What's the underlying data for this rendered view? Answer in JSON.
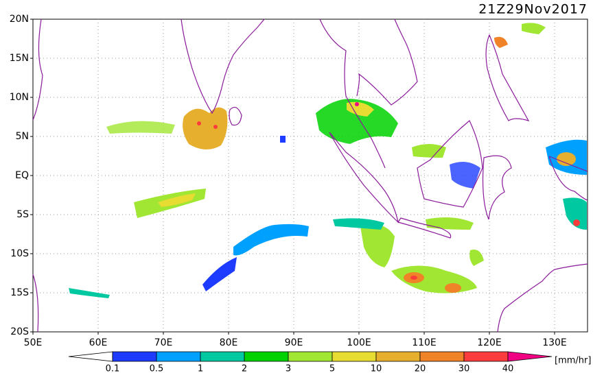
{
  "header": {
    "title": "21Z29Nov2017"
  },
  "map": {
    "lat_labels": [
      "20N",
      "15N",
      "10N",
      "5N",
      "EQ",
      "5S",
      "10S",
      "15S",
      "20S"
    ],
    "lon_labels": [
      "50E",
      "60E",
      "70E",
      "80E",
      "90E",
      "100E",
      "110E",
      "120E",
      "130E"
    ]
  },
  "legend": {
    "ticks": [
      0.1,
      0.5,
      1,
      2,
      3,
      5,
      10,
      20,
      30,
      40
    ],
    "colors": [
      "#ffffff",
      "#1e3cff",
      "#00a0ff",
      "#00c8a0",
      "#00d200",
      "#a0e632",
      "#e6dc32",
      "#e6af2d",
      "#f08228",
      "#fa3c3c",
      "#f00082"
    ],
    "unit": "[mm/hr]"
  }
}
